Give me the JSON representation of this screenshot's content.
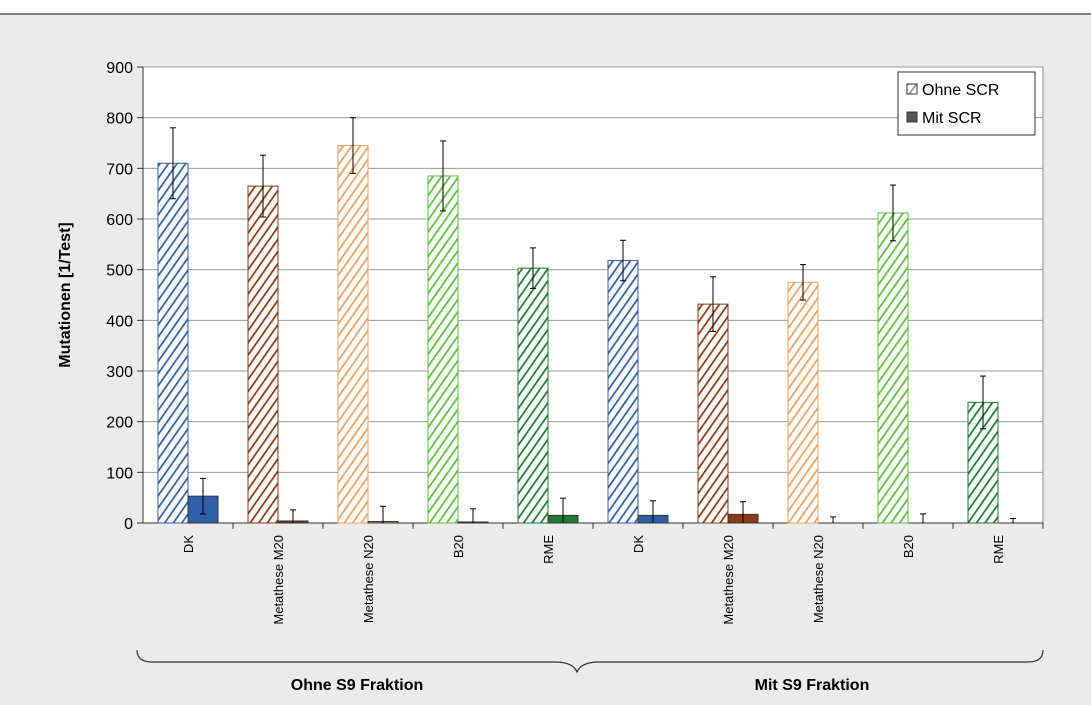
{
  "chart_data": {
    "type": "bar",
    "y_label": "Mutationen [1/Test]",
    "categories": [
      "DK",
      "Metathese M20",
      "Metathese N20",
      "B20",
      "RME",
      "DK",
      "Metathese M20",
      "Metathese N20",
      "B20",
      "RME"
    ],
    "groups": [
      "Ohne S9 Fraktion",
      "Mit S9 Fraktion"
    ],
    "category_colors": [
      "#2f5fa7",
      "#8a3a14",
      "#f0a060",
      "#5cc03c",
      "#1f7a32",
      "#2f5fa7",
      "#8a3a14",
      "#f0a060",
      "#5cc03c",
      "#1f7a32"
    ],
    "series": [
      {
        "name": "Ohne SCR",
        "style": "hatched",
        "color": "#999999",
        "values": [
          710,
          665,
          745,
          685,
          503,
          518,
          432,
          475,
          612,
          238
        ],
        "errors": [
          70,
          61,
          55,
          69,
          40,
          40,
          54,
          35,
          55,
          52
        ]
      },
      {
        "name": "Mit SCR",
        "style": "solid",
        "color": "#555555",
        "values": [
          53,
          4,
          3,
          2,
          15,
          15,
          17,
          0,
          0,
          0
        ],
        "errors": [
          35,
          22,
          30,
          26,
          34,
          29,
          25,
          12,
          18,
          9
        ]
      }
    ],
    "ylim": [
      0,
      900
    ],
    "yticks": [
      0,
      100,
      200,
      300,
      400,
      500,
      600,
      700,
      800,
      900
    ],
    "grid": true,
    "legend": "top-right"
  }
}
